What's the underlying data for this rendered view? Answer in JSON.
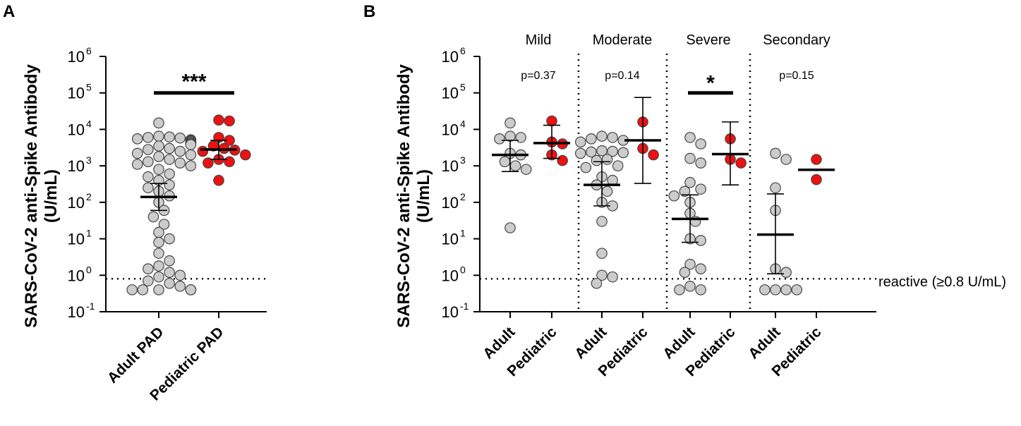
{
  "chart_data": [
    {
      "panel": "A",
      "type": "scatter",
      "ylabel_line1": "SARS-CoV-2 anti-Spike Antibody",
      "ylabel_line2": "(U/mL)",
      "yscale": "log10",
      "ylim": [
        0.1,
        1000000
      ],
      "yticks": [
        {
          "base": "10",
          "exp": "-1"
        },
        {
          "base": "10",
          "exp": "0"
        },
        {
          "base": "10",
          "exp": "1"
        },
        {
          "base": "10",
          "exp": "2"
        },
        {
          "base": "10",
          "exp": "3"
        },
        {
          "base": "10",
          "exp": "4"
        },
        {
          "base": "10",
          "exp": "5"
        },
        {
          "base": "10",
          "exp": "6"
        }
      ],
      "reference_line": 0.8,
      "categories": [
        "Adult PAD",
        "Pediatric PAD"
      ],
      "series": [
        {
          "name": "Adult PAD",
          "color": "#cccccc",
          "values": [
            15000,
            6500,
            6200,
            6000,
            5800,
            5500,
            5200,
            5000,
            4800,
            4500,
            4200,
            4000,
            3800,
            3500,
            3000,
            2800,
            2500,
            2200,
            2000,
            1800,
            1500,
            1300,
            1200,
            1100,
            1000,
            800,
            600,
            500,
            400,
            300,
            250,
            200,
            150,
            100,
            60,
            40,
            25,
            15,
            10,
            8,
            4,
            2.5,
            1.8,
            1.5,
            1.2,
            1.0,
            0.9,
            0.7,
            0.6,
            0.5,
            0.4,
            0.4,
            0.4,
            0.4,
            0.4,
            0.4
          ],
          "center": 140,
          "lower": 60,
          "upper": 330
        },
        {
          "name": "Pediatric PAD",
          "color": "#ee1111",
          "values": [
            18000,
            17000,
            6000,
            5000,
            3500,
            3000,
            2700,
            2500,
            2000,
            1500,
            1300,
            1200,
            400
          ],
          "center": 2800,
          "lower": 1500,
          "upper": 5000
        }
      ],
      "annotations": [
        {
          "text": "***",
          "between": [
            "Adult PAD",
            "Pediatric PAD"
          ],
          "y": 100000
        }
      ]
    },
    {
      "panel": "B",
      "type": "scatter",
      "ylabel_line1": "SARS-CoV-2 anti-Spike Antibody",
      "ylabel_line2": "(U/mL)",
      "yscale": "log10",
      "ylim": [
        0.1,
        1000000
      ],
      "yticks": [
        {
          "base": "10",
          "exp": "-1"
        },
        {
          "base": "10",
          "exp": "0"
        },
        {
          "base": "10",
          "exp": "1"
        },
        {
          "base": "10",
          "exp": "2"
        },
        {
          "base": "10",
          "exp": "3"
        },
        {
          "base": "10",
          "exp": "4"
        },
        {
          "base": "10",
          "exp": "5"
        },
        {
          "base": "10",
          "exp": "6"
        }
      ],
      "reference_line": 0.8,
      "reference_label": "reactive (≥0.8 U/mL)",
      "groups": [
        {
          "title": "Mild",
          "pvalue": "p=0.37",
          "series": [
            {
              "name": "Adult",
              "color": "#cccccc",
              "values": [
                15000,
                6500,
                6000,
                5500,
                2200,
                2000,
                1300,
                1000,
                800,
                20
              ],
              "center": 2000,
              "lower": 700,
              "upper": 5000
            },
            {
              "name": "Pediatric",
              "color": "#ee1111",
              "values": [
                17000,
                4500,
                4000,
                2000,
                1400
              ],
              "center": 4200,
              "lower": 1600,
              "upper": 13000
            }
          ]
        },
        {
          "title": "Moderate",
          "pvalue": "p=0.14",
          "series": [
            {
              "name": "Adult",
              "color": "#cccccc",
              "values": [
                6500,
                6000,
                5500,
                5000,
                4500,
                2600,
                2500,
                2400,
                2300,
                2200,
                1500,
                1400,
                1000,
                900,
                500,
                400,
                300,
                200,
                100,
                80,
                30,
                4,
                1,
                0.9,
                0.6
              ],
              "center": 300,
              "lower": 80,
              "upper": 1300
            },
            {
              "name": "Pediatric",
              "color": "#ee1111",
              "values": [
                16000,
                3000,
                2000
              ],
              "center": 5000,
              "lower": 330,
              "upper": 75000
            }
          ]
        },
        {
          "title": "Severe",
          "pvalue": "",
          "series": [
            {
              "name": "Adult",
              "color": "#cccccc",
              "values": [
                6000,
                4000,
                1600,
                1200,
                350,
                230,
                200,
                150,
                100,
                50,
                30,
                10,
                9,
                2,
                1.5,
                1.2,
                0.5,
                0.4,
                0.4
              ],
              "center": 35,
              "lower": 8,
              "upper": 160
            },
            {
              "name": "Pediatric",
              "color": "#ee1111",
              "values": [
                5500,
                1500,
                1200
              ],
              "center": 2100,
              "lower": 300,
              "upper": 16000
            }
          ]
        },
        {
          "title": "Secondary",
          "pvalue": "p=0.15",
          "series": [
            {
              "name": "Adult",
              "color": "#cccccc",
              "values": [
                2200,
                1500,
                250,
                60,
                1.5,
                1.2,
                0.4,
                0.4,
                0.4,
                0.4
              ],
              "center": 13,
              "lower": 1.1,
              "upper": 170
            },
            {
              "name": "Pediatric",
              "color": "#ee1111",
              "values": [
                1500,
                420
              ],
              "center": 780,
              "lower": null,
              "upper": null
            }
          ]
        }
      ],
      "annotations": [
        {
          "text": "*",
          "group": "Severe",
          "y": 100000
        }
      ]
    }
  ]
}
